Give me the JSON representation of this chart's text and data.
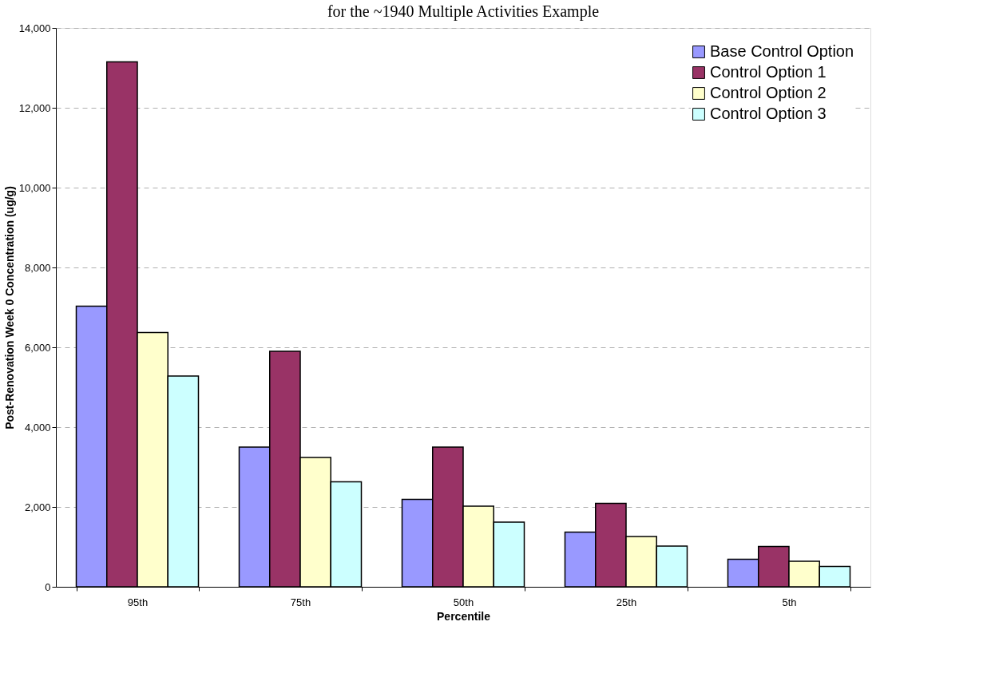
{
  "chart_data": {
    "type": "bar",
    "title": "for the ~1940 Multiple Activities Example",
    "xlabel": "Percentile",
    "ylabel": "Post-Renovation Week 0 Concentration (ug/g)",
    "categories": [
      "95th",
      "75th",
      "50th",
      "25th",
      "5th"
    ],
    "series": [
      {
        "name": "Base Control Option",
        "color": "#9999ff",
        "values": [
          7030,
          3500,
          2190,
          1370,
          690
        ]
      },
      {
        "name": "Control Option 1",
        "color": "#993366",
        "values": [
          13150,
          5900,
          3500,
          2090,
          1010
        ]
      },
      {
        "name": "Control Option 2",
        "color": "#ffffcc",
        "values": [
          6370,
          3240,
          2020,
          1260,
          640
        ]
      },
      {
        "name": "Control Option 3",
        "color": "#ccffff",
        "values": [
          5280,
          2630,
          1620,
          1020,
          510
        ]
      }
    ],
    "ylim": [
      0,
      14000
    ],
    "yticks": [
      0,
      {
        "value": 2000,
        "label": "2,000"
      },
      {
        "value": 4000,
        "label": "4,000"
      },
      {
        "value": 6000,
        "label": "6,000"
      },
      {
        "value": 8000,
        "label": "8,000"
      },
      {
        "value": 10000,
        "label": "10,000"
      },
      {
        "value": 12000,
        "label": "12,000"
      },
      {
        "value": 14000,
        "label": "14,000"
      }
    ],
    "grid": "y",
    "legend": "top right"
  }
}
